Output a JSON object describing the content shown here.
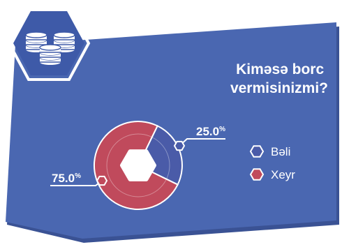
{
  "question": [
    "Kiməsə borc",
    "vermisinizmi?"
  ],
  "colors": {
    "panel": "#4a67b1",
    "panel_shadow": "#3a5294",
    "badge": "#3e5aa8",
    "answer_yes": "#4a5ba8",
    "answer_no": "#c04a5c",
    "text": "#ffffff"
  },
  "icon": "coin-stack-icon",
  "chart_data": {
    "type": "pie",
    "style": "donut",
    "unit": "%",
    "categories": [
      "Bəli",
      "Xeyr"
    ],
    "values": [
      25.0,
      75.0
    ],
    "labels": [
      "25.0",
      "75.0"
    ],
    "legend_position": "right"
  }
}
